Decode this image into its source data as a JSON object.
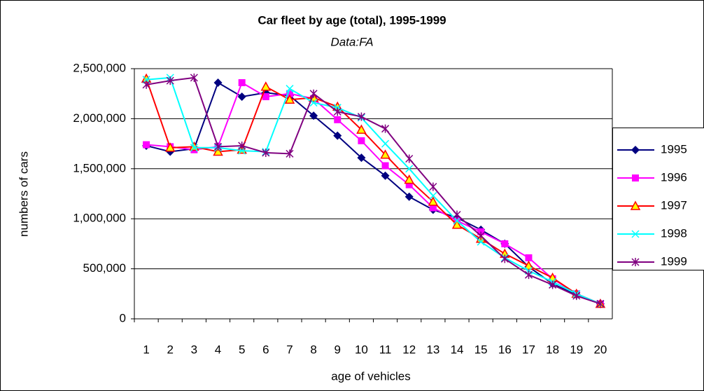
{
  "chart_data": {
    "type": "line",
    "title": "Car fleet by age (total), 1995-1999",
    "subtitle": "Data:FA",
    "x_label": "age of vehicles",
    "y_label": "numbers of cars",
    "categories": [
      1,
      2,
      3,
      4,
      5,
      6,
      7,
      8,
      9,
      10,
      11,
      12,
      13,
      14,
      15,
      16,
      17,
      18,
      19,
      20
    ],
    "ylim": [
      0,
      2500000
    ],
    "yticks": [
      0,
      {
        "value": 500000,
        "label": "500,000"
      },
      {
        "value": 1000000,
        "label": "1,000,000"
      },
      {
        "value": 1500000,
        "label": "1,500,000"
      },
      {
        "value": 2000000,
        "label": "2,000,000"
      },
      {
        "value": 2500000,
        "label": "2,500,000"
      }
    ],
    "grid": true,
    "legend": "right",
    "series": [
      {
        "name": "1995",
        "color": "#000080",
        "marker": "diamond",
        "values": [
          1730000,
          1670000,
          1700000,
          2360000,
          2220000,
          2260000,
          2230000,
          2030000,
          1830000,
          1610000,
          1430000,
          1220000,
          1090000,
          1010000,
          890000,
          750000,
          520000,
          350000,
          240000,
          150000
        ]
      },
      {
        "name": "1996",
        "color": "#ff00ff",
        "marker": "square",
        "values": [
          1740000,
          1720000,
          1690000,
          1720000,
          2360000,
          2220000,
          2250000,
          2200000,
          1990000,
          1780000,
          1530000,
          1340000,
          1110000,
          980000,
          870000,
          750000,
          610000,
          400000,
          250000,
          150000
        ]
      },
      {
        "name": "1997",
        "color": "#ff0000",
        "marker": "triangle",
        "values": [
          2400000,
          1710000,
          1720000,
          1670000,
          1690000,
          2320000,
          2190000,
          2210000,
          2120000,
          1890000,
          1640000,
          1390000,
          1170000,
          940000,
          800000,
          650000,
          530000,
          410000,
          250000,
          150000
        ]
      },
      {
        "name": "1998",
        "color": "#00ffff",
        "marker": "x",
        "values": [
          2390000,
          2410000,
          1710000,
          1710000,
          1680000,
          1670000,
          2300000,
          2160000,
          2110000,
          2010000,
          1750000,
          1500000,
          1230000,
          980000,
          770000,
          610000,
          480000,
          370000,
          250000,
          150000
        ]
      },
      {
        "name": "1999",
        "color": "#800080",
        "marker": "star",
        "values": [
          2340000,
          2380000,
          2410000,
          1720000,
          1730000,
          1660000,
          1650000,
          2250000,
          2070000,
          2020000,
          1900000,
          1600000,
          1320000,
          1040000,
          830000,
          600000,
          440000,
          340000,
          230000,
          150000
        ]
      }
    ]
  }
}
